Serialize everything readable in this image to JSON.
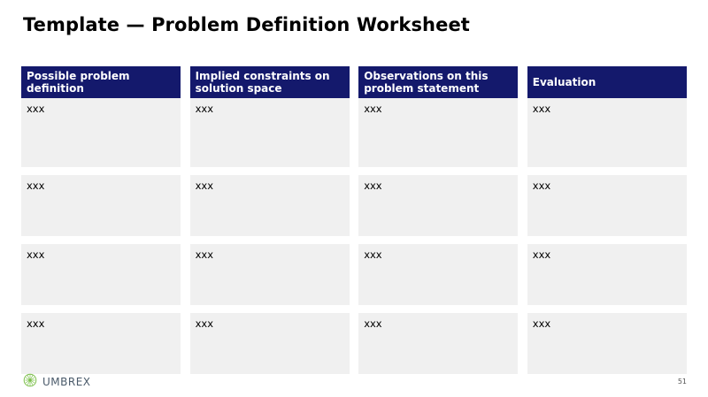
{
  "title": "Template — Problem Definition Worksheet",
  "table": {
    "headers": [
      "Possible problem definition",
      "Implied constraints on solution space",
      "Observations on this problem statement",
      "Evaluation"
    ],
    "rows": [
      [
        "xxx",
        "xxx",
        "xxx",
        "xxx"
      ],
      [
        "xxx",
        "xxx",
        "xxx",
        "xxx"
      ],
      [
        "xxx",
        "xxx",
        "xxx",
        "xxx"
      ],
      [
        "xxx",
        "xxx",
        "xxx",
        "xxx"
      ]
    ]
  },
  "footer": {
    "brand": "UMBREX",
    "logo_icon": "umbrex-globe-icon",
    "page_number": "51"
  },
  "colors": {
    "header_bg": "#14196c",
    "cell_bg": "#f0f0f0",
    "logo_green": "#7bbf4a"
  }
}
